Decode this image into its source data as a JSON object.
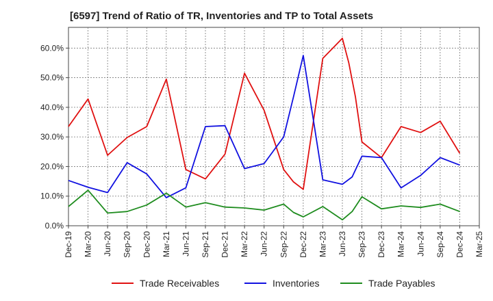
{
  "chart_data": {
    "type": "line",
    "title": "[6597]  Trend of Ratio of TR, Inventories and TP to Total Assets",
    "xlabel": "",
    "ylabel": "",
    "x_ticks": [
      "Dec-19",
      "Mar-20",
      "Jun-20",
      "Sep-20",
      "Dec-20",
      "Mar-21",
      "Jun-21",
      "Sep-21",
      "Dec-21",
      "Mar-22",
      "Jun-22",
      "Sep-22",
      "Dec-22",
      "Mar-23",
      "Jun-23",
      "Sep-23",
      "Dec-23",
      "Mar-24",
      "Jun-24",
      "Sep-24",
      "Dec-24",
      "Mar-25"
    ],
    "y_ticks": [
      "0.0%",
      "10.0%",
      "20.0%",
      "30.0%",
      "40.0%",
      "50.0%",
      "60.0%"
    ],
    "ylim": [
      0,
      67
    ],
    "grid": true,
    "legend_position": "bottom",
    "series": [
      {
        "name": "Trade Receivables",
        "color": "#e01010",
        "points": [
          [
            0,
            33.5
          ],
          [
            1,
            42.8
          ],
          [
            2,
            23.8
          ],
          [
            3,
            29.8
          ],
          [
            4,
            33.5
          ],
          [
            5,
            49.5
          ],
          [
            6,
            19.0
          ],
          [
            7,
            15.8
          ],
          [
            8,
            24.2
          ],
          [
            9,
            51.5
          ],
          [
            10,
            39.0
          ],
          [
            11,
            19.0
          ],
          [
            11.5,
            14.8
          ],
          [
            12,
            12.3
          ],
          [
            13,
            56.5
          ],
          [
            14,
            63.3
          ],
          [
            14.33,
            55.0
          ],
          [
            14.67,
            43.5
          ],
          [
            15,
            28.3
          ],
          [
            16,
            23.0
          ],
          [
            17,
            33.5
          ],
          [
            18,
            31.5
          ],
          [
            19,
            35.3
          ],
          [
            20,
            24.5
          ]
        ]
      },
      {
        "name": "Inventories",
        "color": "#1010e0",
        "points": [
          [
            0,
            15.3
          ],
          [
            1,
            13.0
          ],
          [
            2,
            11.2
          ],
          [
            3,
            21.3
          ],
          [
            4,
            17.5
          ],
          [
            5,
            9.5
          ],
          [
            6,
            12.8
          ],
          [
            7,
            33.5
          ],
          [
            8,
            33.8
          ],
          [
            9,
            19.3
          ],
          [
            10,
            21.0
          ],
          [
            11,
            30.0
          ],
          [
            11.5,
            43.5
          ],
          [
            12,
            57.5
          ],
          [
            13,
            15.5
          ],
          [
            14,
            14.0
          ],
          [
            14.5,
            16.5
          ],
          [
            15,
            23.5
          ],
          [
            16,
            23.0
          ],
          [
            17,
            12.8
          ],
          [
            18,
            17.0
          ],
          [
            19,
            23.0
          ],
          [
            20,
            20.5
          ]
        ]
      },
      {
        "name": "Trade Payables",
        "color": "#1e8c1e",
        "points": [
          [
            0,
            6.5
          ],
          [
            1,
            12.0
          ],
          [
            2,
            4.3
          ],
          [
            3,
            4.8
          ],
          [
            4,
            7.0
          ],
          [
            5,
            11.0
          ],
          [
            6,
            6.3
          ],
          [
            7,
            7.8
          ],
          [
            8,
            6.3
          ],
          [
            9,
            6.0
          ],
          [
            10,
            5.3
          ],
          [
            11,
            7.3
          ],
          [
            11.5,
            4.5
          ],
          [
            12,
            3.0
          ],
          [
            13,
            6.5
          ],
          [
            14,
            2.0
          ],
          [
            14.5,
            4.8
          ],
          [
            15,
            9.8
          ],
          [
            16,
            5.7
          ],
          [
            17,
            6.7
          ],
          [
            18,
            6.2
          ],
          [
            19,
            7.3
          ],
          [
            20,
            4.8
          ]
        ]
      }
    ]
  }
}
